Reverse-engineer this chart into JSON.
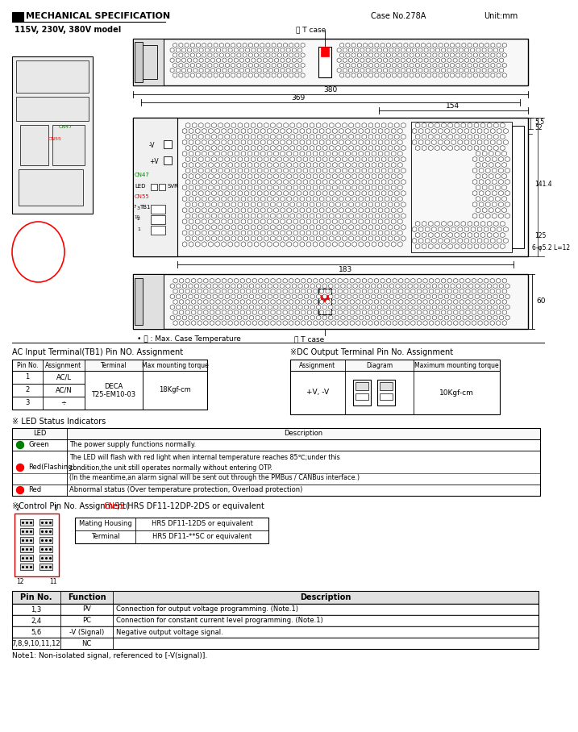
{
  "title": "MECHANICAL SPECIFICATION",
  "case_no": "Case No.278A",
  "unit": "Unit:mm",
  "model_label": "115V, 230V, 380V model",
  "bg_color": "#ffffff",
  "ac_table_title": "AC Input Terminal(TB1) Pin NO. Assignment",
  "ac_headers": [
    "Pin No.",
    "Assignment",
    "Terminal",
    "Max mounting torque"
  ],
  "dc_table_title": "※DC Output Terminal Pin No. Assignment",
  "dc_headers": [
    "Assignment",
    "Diagram",
    "Maximum mounting torque"
  ],
  "led_title": "※ LED Status Indicators",
  "led_headers": [
    "LED",
    "Description"
  ],
  "led_rows": [
    [
      "green",
      "Green",
      "The power supply functions normally."
    ],
    [
      "red",
      "Red(Flashing)",
      "The LED will flash with red light when internal temperature reaches 85℃;under this\ncondition,the unit still operates normally without entering OTP.\n(In the meantime,an alarm signal will be sent out through the PMBus / CANBus interface.)"
    ],
    [
      "red",
      "Red",
      "Abnormal status (Over temperature protection, Overload protection)"
    ]
  ],
  "cn55_title_pre": "※Control Pin No. Assignment(",
  "cn55_name": "CN55",
  "cn55_title_post": ") : HRS DF11-12DP-2DS or equivalent",
  "cn55_rows": [
    [
      "Mating Housing",
      "HRS DF11-12DS or equivalent"
    ],
    [
      "Terminal",
      "HRS DF11-**SC or equivalent"
    ]
  ],
  "pin_headers": [
    "Pin No.",
    "Function",
    "Description"
  ],
  "pin_rows": [
    [
      "1,3",
      "PV",
      "Connection for output voltage programming. (Note.1)"
    ],
    [
      "2,4",
      "PC",
      "Connection for constant current level programming. (Note.1)"
    ],
    [
      "5,6",
      "-V (Signal)",
      "Negative output voltage signal."
    ],
    [
      "7,8,9,10,11,12",
      "NC",
      ""
    ]
  ],
  "note1": "Note1: Non-isolated signal, referenced to [-V(signal)].",
  "dim_380": "380",
  "dim_369": "369",
  "dim_154": "154",
  "dim_5_5": "5.5",
  "dim_52": "52",
  "dim_125": "125",
  "dim_141_4": "141.4",
  "dim_183": "183",
  "dim_60": "60",
  "dim_hole": "6-φ5.2 L=12",
  "tc_label": "T case",
  "max_temp_label": "• Ⓣ : Max. Case Temperature"
}
